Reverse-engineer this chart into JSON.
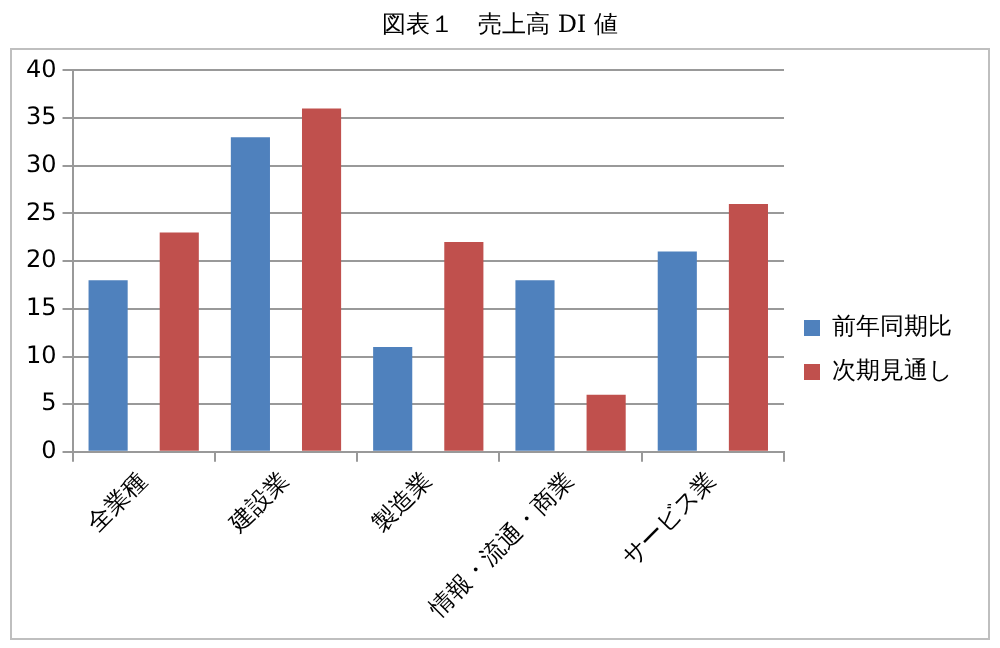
{
  "chart_data": {
    "type": "bar",
    "title": "図表１　売上高 DI 値",
    "categories": [
      "全業種",
      "建設業",
      "製造業",
      "情報・流通・商業",
      "サービス業"
    ],
    "series": [
      {
        "name": "前年同期比",
        "color": "#4f81bd",
        "values": [
          18,
          33,
          11,
          18,
          21
        ]
      },
      {
        "name": "次期見通し",
        "color": "#c0504d",
        "values": [
          23,
          36,
          22,
          6,
          26
        ]
      }
    ],
    "ylim": [
      0,
      40
    ],
    "yticks": [
      0,
      5,
      10,
      15,
      20,
      25,
      30,
      35,
      40
    ],
    "grid": "y",
    "legend": "right"
  }
}
